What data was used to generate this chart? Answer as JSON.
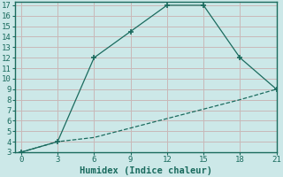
{
  "xlabel": "Humidex (Indice chaleur)",
  "background_color": "#cce8e8",
  "grid_color": "#c8b8b8",
  "line_color": "#1a6b5e",
  "spine_color": "#1a6b5e",
  "upper_x": [
    0,
    3,
    6,
    9,
    12,
    15,
    18,
    21
  ],
  "upper_y": [
    3,
    4,
    12,
    14.5,
    17,
    17,
    12,
    9
  ],
  "lower_x": [
    0,
    3,
    6,
    9,
    12,
    15,
    18,
    21
  ],
  "lower_y": [
    3,
    4,
    4.4,
    5.3,
    6.2,
    7.1,
    8.0,
    9.0
  ],
  "xlim": [
    -0.5,
    21
  ],
  "ylim": [
    3,
    17
  ],
  "xticks": [
    0,
    3,
    6,
    9,
    12,
    15,
    18,
    21
  ],
  "yticks": [
    3,
    4,
    5,
    6,
    7,
    8,
    9,
    10,
    11,
    12,
    13,
    14,
    15,
    16,
    17
  ],
  "tick_fontsize": 6.5,
  "xlabel_fontsize": 7.5
}
